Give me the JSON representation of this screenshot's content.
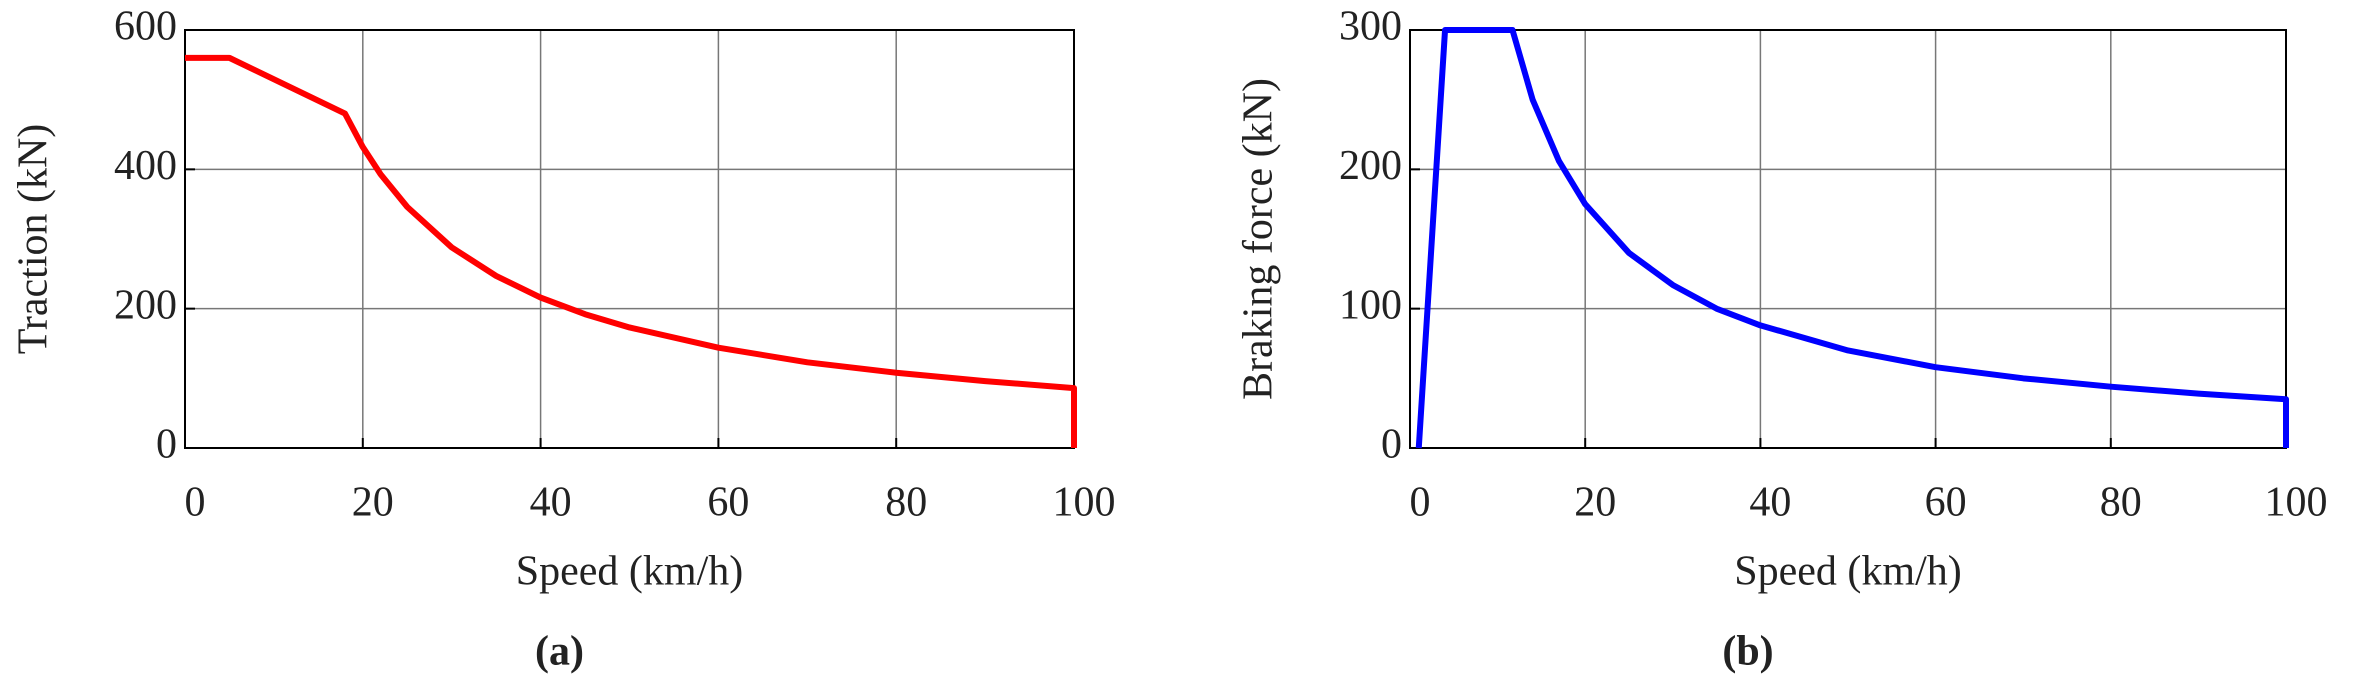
{
  "chart_data": [
    {
      "type": "line",
      "caption": "(a)",
      "xlabel": "Speed (km/h)",
      "ylabel": "Traction (kN)",
      "xlim": [
        0,
        100
      ],
      "ylim": [
        0,
        600
      ],
      "xticks": [
        0,
        20,
        40,
        60,
        80,
        100
      ],
      "yticks": [
        0,
        200,
        400,
        600
      ],
      "grid": true,
      "series": [
        {
          "color": "#ff0000",
          "x": [
            0,
            5,
            18,
            20,
            22,
            25,
            30,
            35,
            40,
            45,
            50,
            60,
            70,
            80,
            90,
            100,
            100
          ],
          "values": [
            560,
            560,
            480,
            432,
            393,
            346,
            288,
            247,
            216,
            192,
            173,
            144,
            123,
            108,
            96,
            86,
            0
          ]
        }
      ]
    },
    {
      "type": "line",
      "caption": "(b)",
      "xlabel": "Speed (km/h)",
      "ylabel": "Braking force (kN)",
      "xlim": [
        0,
        100
      ],
      "ylim": [
        0,
        300
      ],
      "xticks": [
        0,
        20,
        40,
        60,
        80,
        100
      ],
      "yticks": [
        0,
        100,
        200,
        300
      ],
      "grid": true,
      "series": [
        {
          "color": "#0000ff",
          "x": [
            1,
            4,
            11.7,
            14,
            17,
            20,
            25,
            30,
            35,
            40,
            50,
            60,
            70,
            80,
            90,
            100,
            100
          ],
          "values": [
            0,
            300,
            300,
            250,
            206,
            175,
            140,
            117,
            100,
            88,
            70,
            58,
            50,
            44,
            39,
            35,
            0
          ]
        }
      ]
    }
  ]
}
